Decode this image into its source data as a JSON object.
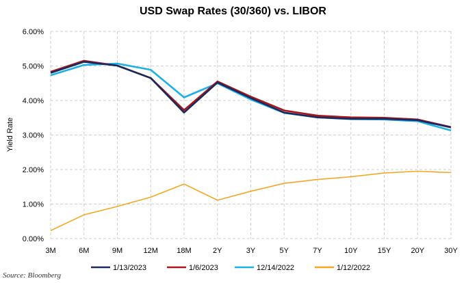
{
  "chart_data": {
    "type": "line",
    "title": "USD Swap Rates (30/360) vs. LIBOR",
    "xlabel": "",
    "ylabel": "Yield Rate",
    "categories": [
      "3M",
      "6M",
      "9M",
      "12M",
      "18M",
      "2Y",
      "3Y",
      "5Y",
      "7Y",
      "10Y",
      "15Y",
      "20Y",
      "30Y"
    ],
    "ylim": [
      0,
      6
    ],
    "y_ticks": [
      "0.00%",
      "1.00%",
      "2.00%",
      "3.00%",
      "4.00%",
      "5.00%",
      "6.00%"
    ],
    "grid": true,
    "legend_position": "bottom",
    "series": [
      {
        "name": "1/13/2023",
        "color": "#1a2a5c",
        "values": [
          4.8,
          5.12,
          5.01,
          4.65,
          3.65,
          4.52,
          4.07,
          3.65,
          3.51,
          3.47,
          3.47,
          3.43,
          3.22
        ]
      },
      {
        "name": "1/6/2023",
        "color": "#a8151b",
        "values": [
          4.83,
          5.15,
          5.01,
          4.65,
          3.72,
          4.55,
          4.11,
          3.71,
          3.56,
          3.51,
          3.5,
          3.45,
          3.23
        ]
      },
      {
        "name": "12/14/2022",
        "color": "#1ab0e8",
        "values": [
          4.73,
          5.03,
          5.07,
          4.89,
          4.09,
          4.5,
          4.03,
          3.64,
          3.51,
          3.46,
          3.45,
          3.4,
          3.13
        ]
      },
      {
        "name": "1/12/2022",
        "color": "#f5a623",
        "values": [
          0.23,
          0.69,
          0.93,
          1.2,
          1.58,
          1.11,
          1.37,
          1.6,
          1.71,
          1.79,
          1.9,
          1.95,
          1.91
        ]
      }
    ]
  },
  "source": "Source: Bloomberg"
}
